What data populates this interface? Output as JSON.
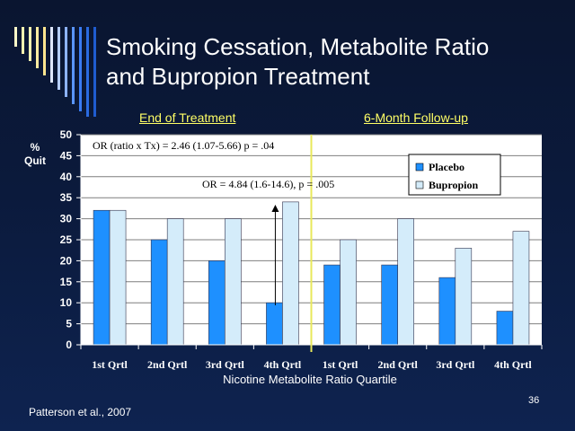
{
  "slide": {
    "title_line1": "Smoking Cessation, Metabolite Ratio",
    "title_line2": "and Bupropion Treatment",
    "subtitle_left": "End of Treatment",
    "subtitle_right": "6-Month Follow-up",
    "y_label_1": "%",
    "y_label_2": "Quit",
    "footer": "Patterson et al., 2007",
    "page_number": "36"
  },
  "chart_data": {
    "type": "bar",
    "xlabel": "Nicotine Metabolite Ratio Quartile",
    "ylabel": "% Quit",
    "ylim": [
      0,
      50
    ],
    "yticks": [
      0,
      5,
      10,
      15,
      20,
      25,
      30,
      35,
      40,
      45,
      50
    ],
    "categories": [
      "1st Qrtl",
      "2nd Qrtl",
      "3rd Qrtl",
      "4th Qrtl",
      "1st Qrtl",
      "2nd Qrtl",
      "3rd Qrtl",
      "4th Qrtl"
    ],
    "series": [
      {
        "name": "Placebo",
        "values": [
          32,
          25,
          20,
          10,
          19,
          19,
          16,
          8
        ],
        "color": "#1e90ff"
      },
      {
        "name": "Bupropion",
        "values": [
          32,
          30,
          30,
          34,
          25,
          30,
          23,
          27
        ],
        "color": "#d4ecfa"
      }
    ],
    "annotations": [
      "OR (ratio x Tx) = 2.46 (1.07-5.66) p = .04",
      "OR = 4.84 (1.6-14.6), p = .005"
    ],
    "divider_after_category": 3,
    "legend_position": "top-right",
    "grid": true,
    "colors": {
      "plot_bg": "#ffffff",
      "divider": "#e8e85a",
      "title": "#ffffff",
      "subtitle": "#ffff66"
    }
  }
}
